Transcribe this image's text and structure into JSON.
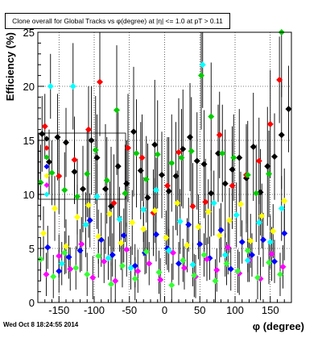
{
  "footer": {
    "timestamp": "Wed Oct  8 18:24:55 2014"
  },
  "chart_data": {
    "type": "scatter",
    "title": "Clone overall for Global Tracks vs φ(degree) at |η| <= 1.0 at pT > 0.11",
    "xlabel": "φ (degree)",
    "ylabel": "Efficiency (%)",
    "xlim": [
      -180,
      180
    ],
    "ylim": [
      0,
      25
    ],
    "x_ticks": [
      -150,
      -100,
      -50,
      0,
      50,
      100,
      150
    ],
    "y_ticks": [
      0,
      5,
      10,
      15,
      20,
      25
    ],
    "grid": true,
    "legend_placement": "left",
    "colors": {
      "black": "#000000",
      "red": "#ff0000",
      "green": "#00cc00",
      "blue": "#0000ff",
      "yellow": "#ffff00",
      "magenta": "#ff00ff",
      "cyan": "#00ffff",
      "lime": "#33ff33"
    },
    "legend": [
      {
        "label": "",
        "color": "#000000"
      },
      {
        "label": "",
        "color": "#ff0000"
      },
      {
        "label": "",
        "color": "#00cc00"
      },
      {
        "label": "",
        "color": "#0000ff"
      },
      {
        "label": "",
        "color": "#ffff00"
      },
      {
        "label": "",
        "color": "#ff00ff"
      },
      {
        "label": "",
        "color": "#00ffff"
      }
    ],
    "series": [
      {
        "color": "#000000",
        "points": [
          [
            -174,
            15.6,
            3.5
          ],
          [
            -164,
            13.0,
            3.0
          ],
          [
            -152,
            15.3,
            4.0
          ],
          [
            -140,
            14.8,
            3.2
          ],
          [
            -128,
            12.1,
            3.0
          ],
          [
            -116,
            10.5,
            4.0
          ],
          [
            -104,
            15.0,
            5.0
          ],
          [
            -96,
            13.4,
            4.0
          ],
          [
            -84,
            10.5,
            6.0
          ],
          [
            -76,
            8.9,
            5.5
          ],
          [
            -66,
            12.6,
            5.0
          ],
          [
            -54,
            11.0,
            4.0
          ],
          [
            -44,
            15.8,
            6.0
          ],
          [
            -34,
            12.2,
            4.5
          ],
          [
            -24,
            9.7,
            5.0
          ],
          [
            -14,
            14.6,
            6.0
          ],
          [
            -4,
            11.8,
            4.0
          ],
          [
            6,
            10.3,
            5.0
          ],
          [
            16,
            11.7,
            5.0
          ],
          [
            26,
            14.2,
            5.5
          ],
          [
            36,
            15.3,
            5.0
          ],
          [
            46,
            13.1,
            4.5
          ],
          [
            56,
            12.8,
            5.0
          ],
          [
            66,
            10.1,
            4.0
          ],
          [
            76,
            13.8,
            4.5
          ],
          [
            86,
            11.0,
            5.0
          ],
          [
            96,
            12.3,
            4.0
          ],
          [
            106,
            13.4,
            4.5
          ],
          [
            116,
            11.5,
            5.0
          ],
          [
            126,
            14.4,
            5.0
          ],
          [
            136,
            10.2,
            4.0
          ],
          [
            146,
            12.6,
            5.5
          ],
          [
            156,
            13.5,
            4.0
          ],
          [
            166,
            15.5,
            5.0
          ],
          [
            176,
            17.9,
            4.0
          ]
        ]
      },
      {
        "color": "#ff0000",
        "points": [
          [
            -170,
            16.3,
            3.0
          ],
          [
            -150,
            11.7,
            3.5
          ],
          [
            -128,
            13.2,
            4.0
          ],
          [
            -108,
            16.0,
            4.0
          ],
          [
            -92,
            20.4,
            5.0
          ],
          [
            -72,
            9.2,
            4.5
          ],
          [
            -52,
            14.3,
            5.0
          ],
          [
            -32,
            13.4,
            4.0
          ],
          [
            -16,
            8.3,
            4.0
          ],
          [
            4,
            10.8,
            4.5
          ],
          [
            20,
            13.9,
            5.0
          ],
          [
            40,
            8.9,
            4.0
          ],
          [
            58,
            9.3,
            4.0
          ],
          [
            78,
            15.5,
            4.0
          ],
          [
            96,
            10.8,
            4.0
          ],
          [
            116,
            11.8,
            4.5
          ],
          [
            134,
            13.1,
            4.0
          ],
          [
            150,
            16.5,
            5.0
          ],
          [
            163,
            20.6,
            4.0
          ]
        ]
      },
      {
        "color": "#00cc00",
        "points": [
          [
            -176,
            11.1,
            3.5
          ],
          [
            -160,
            12.0,
            3.0
          ],
          [
            -142,
            10.4,
            3.5
          ],
          [
            -124,
            9.8,
            3.5
          ],
          [
            -110,
            11.9,
            4.0
          ],
          [
            -98,
            14.1,
            5.0
          ],
          [
            -82,
            11.3,
            4.0
          ],
          [
            -68,
            17.8,
            6.0
          ],
          [
            -56,
            10.1,
            4.5
          ],
          [
            -40,
            13.8,
            5.0
          ],
          [
            -26,
            11.4,
            4.0
          ],
          [
            -10,
            13.7,
            5.0
          ],
          [
            10,
            12.9,
            4.5
          ],
          [
            24,
            13.4,
            4.5
          ],
          [
            38,
            14.0,
            5.0
          ],
          [
            52,
            21.0,
            5.0
          ],
          [
            66,
            17.2,
            5.0
          ],
          [
            82,
            13.8,
            4.5
          ],
          [
            98,
            13.4,
            4.0
          ],
          [
            118,
            11.8,
            5.0
          ],
          [
            130,
            10.1,
            4.5
          ],
          [
            148,
            11.9,
            4.0
          ],
          [
            166,
            25.0,
            6.0
          ]
        ]
      },
      {
        "color": "#0000ff",
        "points": [
          [
            -166,
            5.1,
            2.0
          ],
          [
            -150,
            2.9,
            2.0
          ],
          [
            -136,
            4.2,
            2.0
          ],
          [
            -120,
            4.8,
            2.0
          ],
          [
            -106,
            7.6,
            2.5
          ],
          [
            -90,
            5.8,
            2.5
          ],
          [
            -74,
            4.4,
            2.0
          ],
          [
            -58,
            6.2,
            2.5
          ],
          [
            -42,
            3.4,
            2.0
          ],
          [
            -28,
            4.6,
            2.0
          ],
          [
            -12,
            6.3,
            2.5
          ],
          [
            4,
            5.0,
            2.0
          ],
          [
            20,
            3.6,
            2.0
          ],
          [
            34,
            7.2,
            2.5
          ],
          [
            50,
            5.4,
            2.0
          ],
          [
            64,
            4.1,
            2.0
          ],
          [
            80,
            6.7,
            2.5
          ],
          [
            94,
            3.1,
            2.0
          ],
          [
            110,
            5.6,
            2.0
          ],
          [
            124,
            4.4,
            2.0
          ],
          [
            140,
            5.8,
            2.5
          ],
          [
            156,
            3.8,
            2.0
          ],
          [
            170,
            6.4,
            2.5
          ]
        ]
      },
      {
        "color": "#ffff00",
        "points": [
          [
            -172,
            6.4,
            2.5
          ],
          [
            -156,
            8.7,
            3.0
          ],
          [
            -140,
            5.2,
            2.5
          ],
          [
            -124,
            7.9,
            3.0
          ],
          [
            -108,
            9.0,
            3.0
          ],
          [
            -94,
            6.1,
            2.5
          ],
          [
            -78,
            8.2,
            3.0
          ],
          [
            -62,
            5.5,
            2.5
          ],
          [
            -46,
            7.4,
            3.0
          ],
          [
            -30,
            6.8,
            2.5
          ],
          [
            -14,
            8.5,
            3.0
          ],
          [
            2,
            6.0,
            2.5
          ],
          [
            18,
            9.2,
            3.0
          ],
          [
            32,
            5.3,
            2.5
          ],
          [
            48,
            7.0,
            3.0
          ],
          [
            62,
            8.4,
            3.0
          ],
          [
            78,
            6.2,
            2.5
          ],
          [
            92,
            7.6,
            3.0
          ],
          [
            108,
            9.1,
            3.0
          ],
          [
            122,
            5.7,
            2.5
          ],
          [
            138,
            8.0,
            3.0
          ],
          [
            154,
            6.6,
            2.5
          ],
          [
            170,
            9.4,
            3.0
          ]
        ]
      },
      {
        "color": "#ff00ff",
        "points": [
          [
            -168,
            2.6,
            2.0
          ],
          [
            -150,
            4.3,
            2.0
          ],
          [
            -134,
            3.1,
            2.0
          ],
          [
            -118,
            5.4,
            2.5
          ],
          [
            -102,
            2.3,
            2.0
          ],
          [
            -86,
            3.8,
            2.0
          ],
          [
            -70,
            2.0,
            2.0
          ],
          [
            -54,
            4.9,
            2.5
          ],
          [
            -38,
            2.9,
            2.0
          ],
          [
            -22,
            3.6,
            2.0
          ],
          [
            -6,
            2.1,
            2.0
          ],
          [
            12,
            4.6,
            2.5
          ],
          [
            28,
            3.2,
            2.0
          ],
          [
            44,
            2.4,
            2.0
          ],
          [
            60,
            4.0,
            2.0
          ],
          [
            74,
            3.0,
            2.0
          ],
          [
            90,
            5.1,
            2.5
          ],
          [
            106,
            2.7,
            2.0
          ],
          [
            120,
            3.9,
            2.0
          ],
          [
            136,
            2.2,
            2.0
          ],
          [
            152,
            4.5,
            2.5
          ],
          [
            168,
            3.3,
            2.0
          ]
        ]
      },
      {
        "color": "#00ffff",
        "points": [
          [
            -162,
            20.0,
            3.0
          ],
          [
            -146,
            3.6,
            2.0
          ],
          [
            -130,
            20.0,
            4.0
          ],
          [
            -112,
            7.2,
            3.0
          ],
          [
            -96,
            9.8,
            3.0
          ],
          [
            -80,
            4.1,
            2.0
          ],
          [
            -64,
            7.7,
            3.0
          ],
          [
            -48,
            3.2,
            2.0
          ],
          [
            -30,
            8.6,
            3.0
          ],
          [
            -12,
            10.4,
            3.0
          ],
          [
            6,
            4.8,
            2.0
          ],
          [
            22,
            7.5,
            3.0
          ],
          [
            40,
            3.5,
            2.0
          ],
          [
            54,
            22.0,
            4.0
          ],
          [
            70,
            9.2,
            3.0
          ],
          [
            86,
            4.4,
            2.0
          ],
          [
            102,
            8.1,
            3.0
          ],
          [
            118,
            3.9,
            2.0
          ],
          [
            134,
            7.4,
            3.0
          ],
          [
            150,
            5.6,
            2.5
          ],
          [
            166,
            8.7,
            3.0
          ]
        ]
      },
      {
        "color": "#33ff33",
        "points": [
          [
            -176,
            4.0,
            2.0
          ],
          [
            -158,
            2.4,
            2.0
          ],
          [
            -142,
            4.6,
            2.0
          ],
          [
            -126,
            3.2,
            2.0
          ],
          [
            -110,
            2.6,
            2.0
          ],
          [
            -94,
            4.3,
            2.0
          ],
          [
            -76,
            1.7,
            2.0
          ],
          [
            -60,
            3.4,
            2.0
          ],
          [
            -42,
            2.2,
            2.0
          ],
          [
            -26,
            4.7,
            2.0
          ],
          [
            -8,
            2.8,
            2.0
          ],
          [
            10,
            1.6,
            2.0
          ],
          [
            26,
            3.9,
            2.0
          ],
          [
            42,
            2.5,
            2.0
          ],
          [
            56,
            4.4,
            2.0
          ],
          [
            72,
            2.0,
            2.0
          ],
          [
            88,
            3.6,
            2.0
          ],
          [
            104,
            2.9,
            2.0
          ],
          [
            118,
            4.8,
            2.0
          ],
          [
            132,
            2.3,
            2.0
          ],
          [
            148,
            3.7,
            2.0
          ],
          [
            164,
            2.6,
            2.0
          ]
        ]
      }
    ]
  }
}
